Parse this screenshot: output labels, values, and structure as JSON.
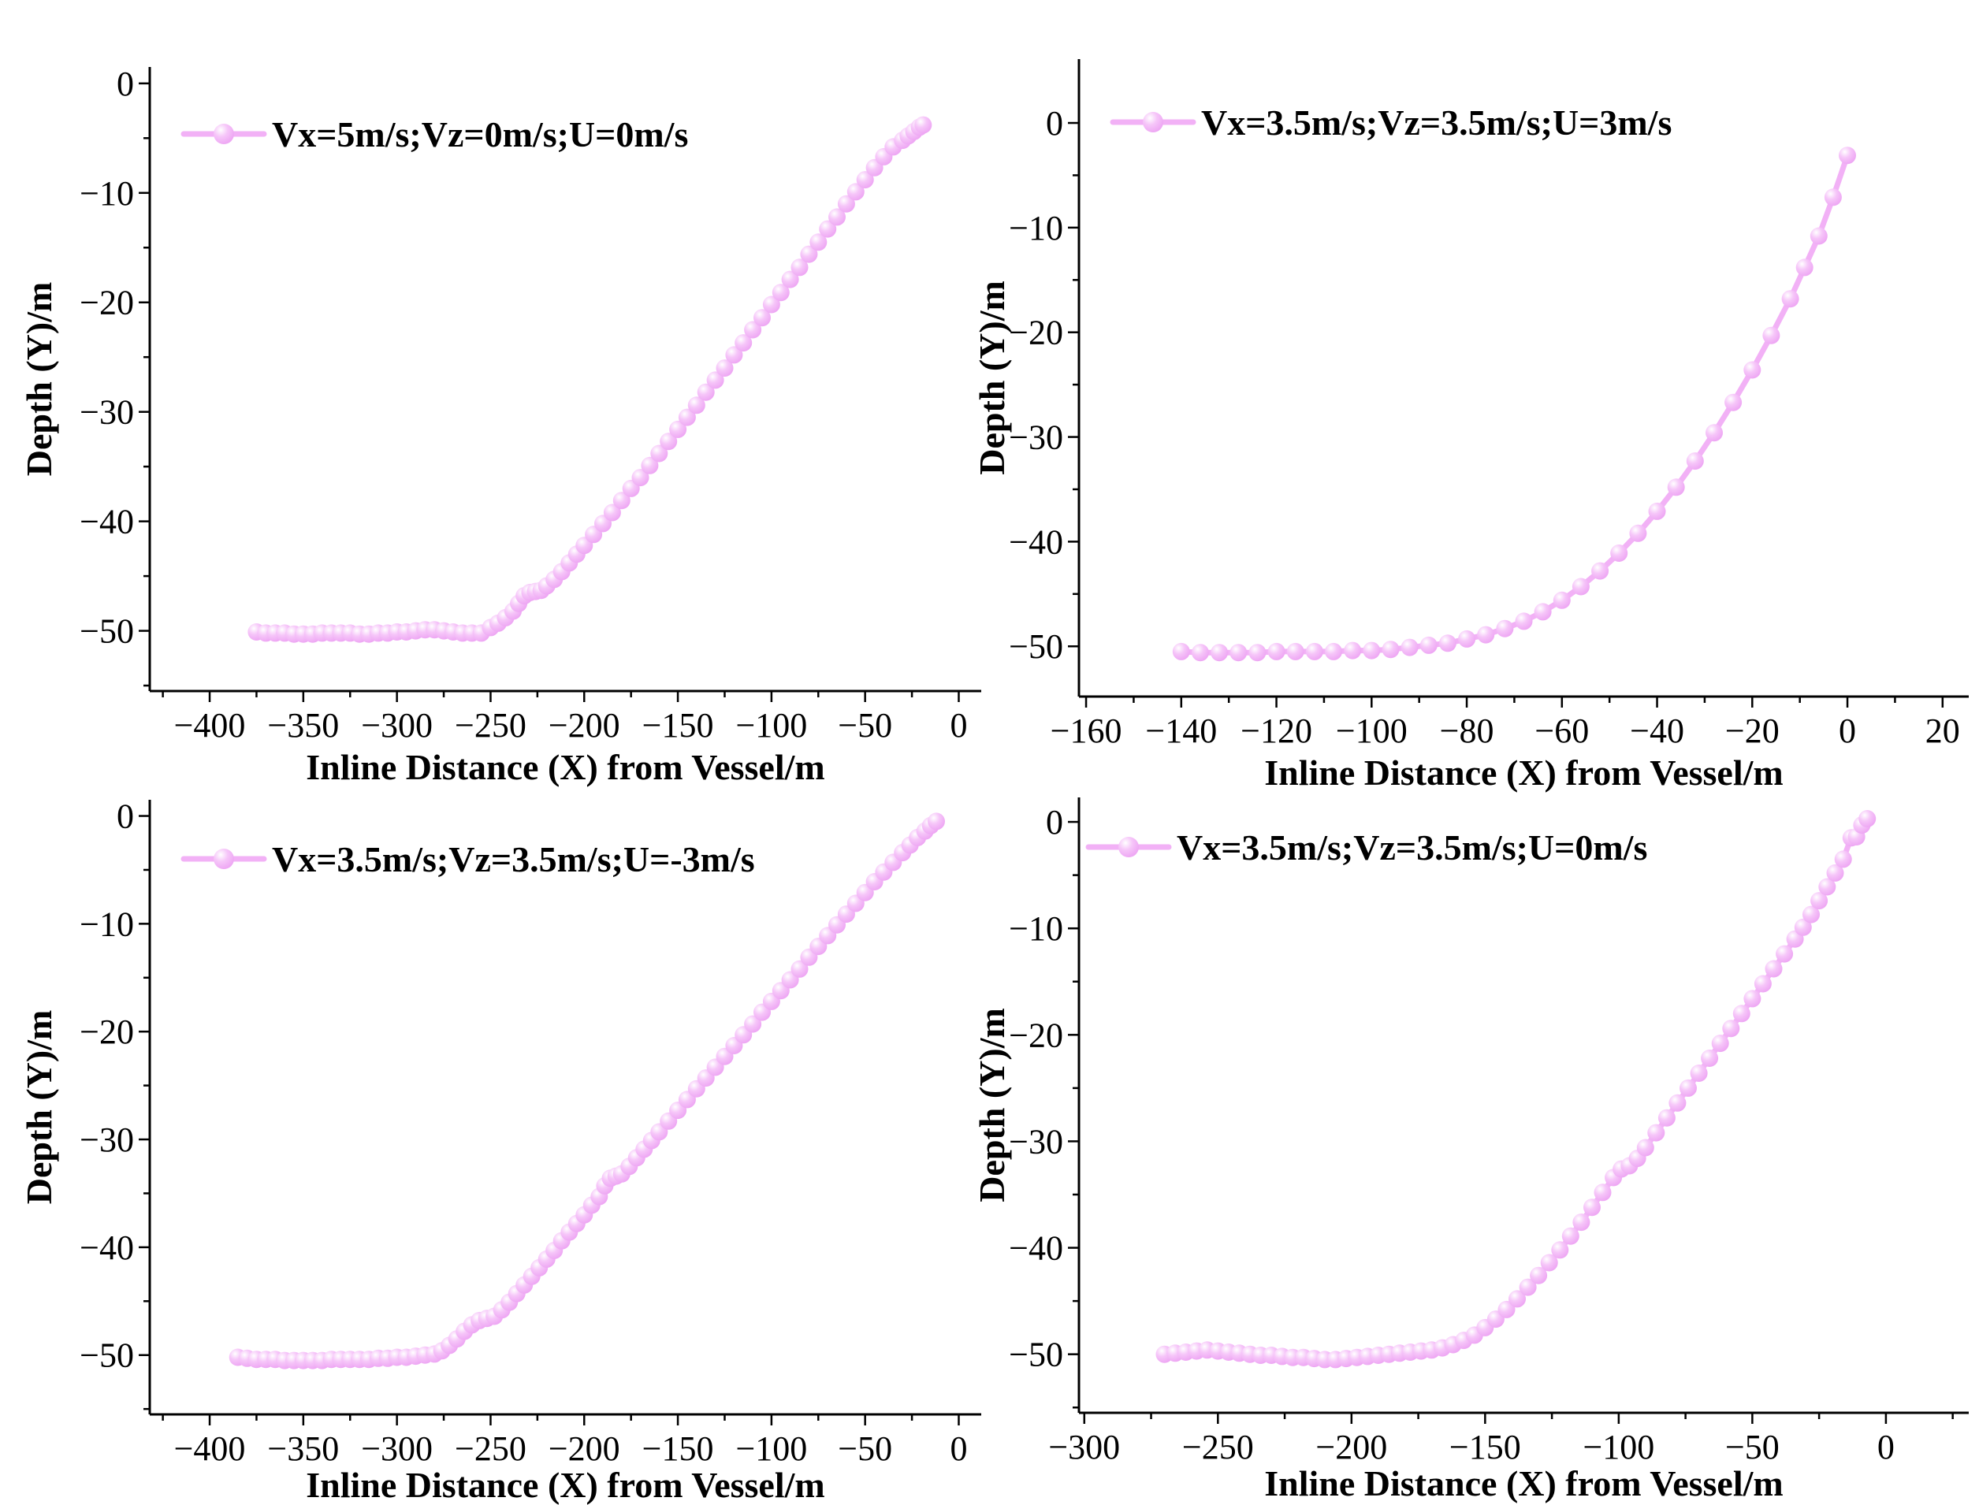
{
  "figure": {
    "background": "#ffffff",
    "axis_color": "#000000",
    "series_color": "#f2b1f6",
    "marker_fill_center": "#ffffff",
    "marker_fill_mid": "#f6c6f9",
    "marker_fill_edge": "#eda4f3"
  },
  "chart_data": [
    {
      "id": "top-left",
      "type": "line",
      "legend": "Vx=5m/s;Vz=0m/s;U=0m/s",
      "xlabel": "Inline Distance (X) from Vessel/m",
      "ylabel": "Depth (Y)/m",
      "xlim": [
        -432,
        12
      ],
      "ylim": [
        -55.5,
        1.5
      ],
      "x_major_ticks": [
        -400,
        -350,
        -300,
        -250,
        -200,
        -150,
        -100,
        -50,
        0
      ],
      "x_tick_labels": [
        "−400",
        "−350",
        "−300",
        "−250",
        "−200",
        "−150",
        "−100",
        "−50",
        "0"
      ],
      "x_minor_step": 25,
      "y_major_ticks": [
        0,
        -10,
        -20,
        -30,
        -40,
        -50
      ],
      "y_tick_labels": [
        "0",
        "−10",
        "−20",
        "−30",
        "−40",
        "−50"
      ],
      "y_minor_step": 5,
      "grid": false,
      "legend_position": "top-left-inside",
      "points": [
        [
          -375,
          -50.1
        ],
        [
          -370,
          -50.2
        ],
        [
          -365,
          -50.2
        ],
        [
          -360,
          -50.2
        ],
        [
          -355,
          -50.3
        ],
        [
          -350,
          -50.3
        ],
        [
          -345,
          -50.3
        ],
        [
          -340,
          -50.2
        ],
        [
          -335,
          -50.2
        ],
        [
          -330,
          -50.2
        ],
        [
          -325,
          -50.2
        ],
        [
          -320,
          -50.3
        ],
        [
          -315,
          -50.3
        ],
        [
          -310,
          -50.2
        ],
        [
          -305,
          -50.2
        ],
        [
          -300,
          -50.1
        ],
        [
          -295,
          -50.1
        ],
        [
          -290,
          -50.0
        ],
        [
          -285,
          -49.9
        ],
        [
          -280,
          -49.9
        ],
        [
          -275,
          -50.0
        ],
        [
          -270,
          -50.1
        ],
        [
          -265,
          -50.2
        ],
        [
          -260,
          -50.2
        ],
        [
          -255,
          -50.2
        ],
        [
          -250,
          -49.7
        ],
        [
          -246,
          -49.3
        ],
        [
          -242,
          -48.8
        ],
        [
          -238,
          -48.2
        ],
        [
          -235,
          -47.5
        ],
        [
          -232,
          -46.8
        ],
        [
          -229,
          -46.5
        ],
        [
          -226,
          -46.4
        ],
        [
          -223,
          -46.3
        ],
        [
          -220,
          -45.9
        ],
        [
          -216,
          -45.3
        ],
        [
          -212,
          -44.6
        ],
        [
          -208,
          -43.8
        ],
        [
          -204,
          -43.0
        ],
        [
          -200,
          -42.2
        ],
        [
          -195,
          -41.2
        ],
        [
          -190,
          -40.2
        ],
        [
          -185,
          -39.2
        ],
        [
          -180,
          -38.1
        ],
        [
          -175,
          -37.0
        ],
        [
          -170,
          -36.0
        ],
        [
          -165,
          -34.9
        ],
        [
          -160,
          -33.8
        ],
        [
          -155,
          -32.7
        ],
        [
          -150,
          -31.6
        ],
        [
          -145,
          -30.5
        ],
        [
          -140,
          -29.4
        ],
        [
          -135,
          -28.2
        ],
        [
          -130,
          -27.1
        ],
        [
          -125,
          -26.0
        ],
        [
          -120,
          -24.8
        ],
        [
          -115,
          -23.7
        ],
        [
          -110,
          -22.5
        ],
        [
          -105,
          -21.4
        ],
        [
          -100,
          -20.2
        ],
        [
          -95,
          -19.1
        ],
        [
          -90,
          -17.9
        ],
        [
          -85,
          -16.8
        ],
        [
          -80,
          -15.6
        ],
        [
          -75,
          -14.5
        ],
        [
          -70,
          -13.3
        ],
        [
          -65,
          -12.2
        ],
        [
          -60,
          -11.0
        ],
        [
          -55,
          -9.9
        ],
        [
          -50,
          -8.8
        ],
        [
          -45,
          -7.7
        ],
        [
          -40,
          -6.7
        ],
        [
          -35,
          -5.8
        ],
        [
          -30,
          -5.2
        ],
        [
          -27,
          -4.8
        ],
        [
          -24,
          -4.4
        ],
        [
          -21,
          -4.0
        ],
        [
          -19,
          -3.8
        ]
      ]
    },
    {
      "id": "top-right",
      "type": "line",
      "legend": "Vx=3.5m/s;Vz=3.5m/s;U=3m/s",
      "xlabel": "Inline Distance (X) from Vessel/m",
      "ylabel": "Depth (Y)/m",
      "xlim": [
        -161.5,
        25.5
      ],
      "ylim": [
        -54.8,
        6.1
      ],
      "x_major_ticks": [
        -160,
        -140,
        -120,
        -100,
        -80,
        -60,
        -40,
        -20,
        0,
        20
      ],
      "x_tick_labels": [
        "−160",
        "−140",
        "−120",
        "−100",
        "−80",
        "−60",
        "−40",
        "−20",
        "0",
        "20"
      ],
      "x_minor_step": 10,
      "y_major_ticks": [
        0,
        -10,
        -20,
        -30,
        -40,
        -50
      ],
      "y_tick_labels": [
        "0",
        "−10",
        "−20",
        "−30",
        "−40",
        "−50"
      ],
      "y_minor_step": 5,
      "grid": false,
      "legend_position": "top-left-inside",
      "points": [
        [
          -140,
          -50.5
        ],
        [
          -136,
          -50.6
        ],
        [
          -132,
          -50.6
        ],
        [
          -128,
          -50.6
        ],
        [
          -124,
          -50.6
        ],
        [
          -120,
          -50.5
        ],
        [
          -116,
          -50.5
        ],
        [
          -112,
          -50.5
        ],
        [
          -108,
          -50.5
        ],
        [
          -104,
          -50.4
        ],
        [
          -100,
          -50.4
        ],
        [
          -96,
          -50.3
        ],
        [
          -92,
          -50.1
        ],
        [
          -88,
          -49.9
        ],
        [
          -84,
          -49.7
        ],
        [
          -80,
          -49.3
        ],
        [
          -76,
          -48.9
        ],
        [
          -72,
          -48.3
        ],
        [
          -68,
          -47.6
        ],
        [
          -64,
          -46.7
        ],
        [
          -60,
          -45.6
        ],
        [
          -56,
          -44.3
        ],
        [
          -52,
          -42.8
        ],
        [
          -48,
          -41.1
        ],
        [
          -44,
          -39.2
        ],
        [
          -40,
          -37.1
        ],
        [
          -36,
          -34.8
        ],
        [
          -32,
          -32.3
        ],
        [
          -28,
          -29.6
        ],
        [
          -24,
          -26.7
        ],
        [
          -20,
          -23.6
        ],
        [
          -16,
          -20.3
        ],
        [
          -12,
          -16.8
        ],
        [
          -9,
          -13.8
        ],
        [
          -6,
          -10.8
        ],
        [
          -3,
          -7.1
        ],
        [
          0,
          -3.1
        ]
      ]
    },
    {
      "id": "bottom-left",
      "type": "line",
      "legend": "Vx=3.5m/s;Vz=3.5m/s;U=-3m/s",
      "xlabel": "Inline Distance (X) from Vessel/m",
      "ylabel": "Depth (Y)/m",
      "xlim": [
        -432,
        12
      ],
      "ylim": [
        -55.5,
        1.5
      ],
      "x_major_ticks": [
        -400,
        -350,
        -300,
        -250,
        -200,
        -150,
        -100,
        -50,
        0
      ],
      "x_tick_labels": [
        "−400",
        "−350",
        "−300",
        "−250",
        "−200",
        "−150",
        "−100",
        "−50",
        "0"
      ],
      "x_minor_step": 25,
      "y_major_ticks": [
        0,
        -10,
        -20,
        -30,
        -40,
        -50
      ],
      "y_tick_labels": [
        "0",
        "−10",
        "−20",
        "−30",
        "−40",
        "−50"
      ],
      "y_minor_step": 5,
      "grid": false,
      "legend_position": "top-left-inside",
      "points": [
        [
          -385,
          -50.2
        ],
        [
          -380,
          -50.3
        ],
        [
          -375,
          -50.4
        ],
        [
          -370,
          -50.4
        ],
        [
          -365,
          -50.4
        ],
        [
          -360,
          -50.5
        ],
        [
          -355,
          -50.5
        ],
        [
          -350,
          -50.5
        ],
        [
          -345,
          -50.5
        ],
        [
          -340,
          -50.5
        ],
        [
          -335,
          -50.4
        ],
        [
          -330,
          -50.4
        ],
        [
          -325,
          -50.4
        ],
        [
          -320,
          -50.4
        ],
        [
          -315,
          -50.4
        ],
        [
          -310,
          -50.3
        ],
        [
          -305,
          -50.3
        ],
        [
          -300,
          -50.2
        ],
        [
          -295,
          -50.2
        ],
        [
          -290,
          -50.1
        ],
        [
          -285,
          -50.0
        ],
        [
          -280,
          -49.9
        ],
        [
          -276,
          -49.6
        ],
        [
          -272,
          -49.1
        ],
        [
          -268,
          -48.5
        ],
        [
          -264,
          -47.8
        ],
        [
          -260,
          -47.2
        ],
        [
          -256,
          -46.8
        ],
        [
          -252,
          -46.6
        ],
        [
          -248,
          -46.4
        ],
        [
          -244,
          -45.8
        ],
        [
          -240,
          -45.1
        ],
        [
          -236,
          -44.3
        ],
        [
          -232,
          -43.5
        ],
        [
          -228,
          -42.7
        ],
        [
          -224,
          -41.9
        ],
        [
          -220,
          -41.1
        ],
        [
          -216,
          -40.3
        ],
        [
          -212,
          -39.4
        ],
        [
          -208,
          -38.6
        ],
        [
          -204,
          -37.8
        ],
        [
          -200,
          -37.0
        ],
        [
          -196,
          -36.1
        ],
        [
          -192,
          -35.3
        ],
        [
          -189,
          -34.3
        ],
        [
          -186,
          -33.6
        ],
        [
          -183,
          -33.4
        ],
        [
          -180,
          -33.2
        ],
        [
          -176,
          -32.5
        ],
        [
          -172,
          -31.7
        ],
        [
          -168,
          -30.9
        ],
        [
          -164,
          -30.1
        ],
        [
          -160,
          -29.3
        ],
        [
          -155,
          -28.3
        ],
        [
          -150,
          -27.3
        ],
        [
          -145,
          -26.3
        ],
        [
          -140,
          -25.3
        ],
        [
          -135,
          -24.3
        ],
        [
          -130,
          -23.3
        ],
        [
          -125,
          -22.3
        ],
        [
          -120,
          -21.3
        ],
        [
          -115,
          -20.3
        ],
        [
          -110,
          -19.3
        ],
        [
          -105,
          -18.2
        ],
        [
          -100,
          -17.2
        ],
        [
          -95,
          -16.2
        ],
        [
          -90,
          -15.2
        ],
        [
          -85,
          -14.2
        ],
        [
          -80,
          -13.1
        ],
        [
          -75,
          -12.1
        ],
        [
          -70,
          -11.1
        ],
        [
          -65,
          -10.1
        ],
        [
          -60,
          -9.1
        ],
        [
          -55,
          -8.1
        ],
        [
          -50,
          -7.1
        ],
        [
          -45,
          -6.1
        ],
        [
          -40,
          -5.2
        ],
        [
          -35,
          -4.3
        ],
        [
          -30,
          -3.4
        ],
        [
          -26,
          -2.7
        ],
        [
          -22,
          -2.0
        ],
        [
          -18,
          -1.4
        ],
        [
          -15,
          -0.9
        ],
        [
          -12,
          -0.5
        ]
      ]
    },
    {
      "id": "bottom-right",
      "type": "line",
      "legend": "Vx=3.5m/s;Vz=3.5m/s;U=0m/s",
      "xlabel": "Inline Distance (X) from Vessel/m",
      "ylabel": "Depth (Y)/m",
      "xlim": [
        -302,
        31
      ],
      "ylim": [
        -55.5,
        2.3
      ],
      "x_major_ticks": [
        -300,
        -250,
        -200,
        -150,
        -100,
        -50,
        0
      ],
      "x_tick_labels": [
        "−300",
        "−250",
        "−200",
        "−150",
        "−100",
        "−50",
        "0"
      ],
      "x_minor_step": 25,
      "y_major_ticks": [
        0,
        -10,
        -20,
        -30,
        -40,
        -50
      ],
      "y_tick_labels": [
        "0",
        "−10",
        "−20",
        "−30",
        "−40",
        "−50"
      ],
      "y_minor_step": 5,
      "grid": false,
      "legend_position": "top-left-inside",
      "points": [
        [
          -270,
          -50.0
        ],
        [
          -266,
          -49.9
        ],
        [
          -262,
          -49.8
        ],
        [
          -258,
          -49.7
        ],
        [
          -254,
          -49.6
        ],
        [
          -250,
          -49.7
        ],
        [
          -246,
          -49.8
        ],
        [
          -242,
          -49.9
        ],
        [
          -238,
          -50.0
        ],
        [
          -234,
          -50.1
        ],
        [
          -230,
          -50.1
        ],
        [
          -226,
          -50.2
        ],
        [
          -222,
          -50.3
        ],
        [
          -218,
          -50.3
        ],
        [
          -214,
          -50.4
        ],
        [
          -210,
          -50.5
        ],
        [
          -206,
          -50.5
        ],
        [
          -202,
          -50.4
        ],
        [
          -198,
          -50.3
        ],
        [
          -194,
          -50.2
        ],
        [
          -190,
          -50.1
        ],
        [
          -186,
          -50.0
        ],
        [
          -182,
          -49.9
        ],
        [
          -178,
          -49.8
        ],
        [
          -174,
          -49.7
        ],
        [
          -170,
          -49.6
        ],
        [
          -166,
          -49.4
        ],
        [
          -162,
          -49.1
        ],
        [
          -158,
          -48.7
        ],
        [
          -154,
          -48.2
        ],
        [
          -150,
          -47.5
        ],
        [
          -146,
          -46.7
        ],
        [
          -142,
          -45.8
        ],
        [
          -138,
          -44.8
        ],
        [
          -134,
          -43.7
        ],
        [
          -130,
          -42.6
        ],
        [
          -126,
          -41.4
        ],
        [
          -122,
          -40.2
        ],
        [
          -118,
          -38.9
        ],
        [
          -114,
          -37.6
        ],
        [
          -110,
          -36.2
        ],
        [
          -106,
          -34.8
        ],
        [
          -102,
          -33.4
        ],
        [
          -99,
          -32.6
        ],
        [
          -96,
          -32.3
        ],
        [
          -93,
          -31.6
        ],
        [
          -90,
          -30.6
        ],
        [
          -86,
          -29.2
        ],
        [
          -82,
          -27.8
        ],
        [
          -78,
          -26.4
        ],
        [
          -74,
          -25.0
        ],
        [
          -70,
          -23.6
        ],
        [
          -66,
          -22.2
        ],
        [
          -62,
          -20.8
        ],
        [
          -58,
          -19.4
        ],
        [
          -54,
          -18.0
        ],
        [
          -50,
          -16.6
        ],
        [
          -46,
          -15.2
        ],
        [
          -42,
          -13.8
        ],
        [
          -38,
          -12.4
        ],
        [
          -34,
          -11.0
        ],
        [
          -31,
          -9.9
        ],
        [
          -28,
          -8.7
        ],
        [
          -25,
          -7.4
        ],
        [
          -22,
          -6.1
        ],
        [
          -19,
          -4.8
        ],
        [
          -16,
          -3.5
        ],
        [
          -13,
          -1.5
        ],
        [
          -11,
          -1.4
        ],
        [
          -9,
          -0.3
        ],
        [
          -7,
          0.3
        ]
      ]
    }
  ]
}
